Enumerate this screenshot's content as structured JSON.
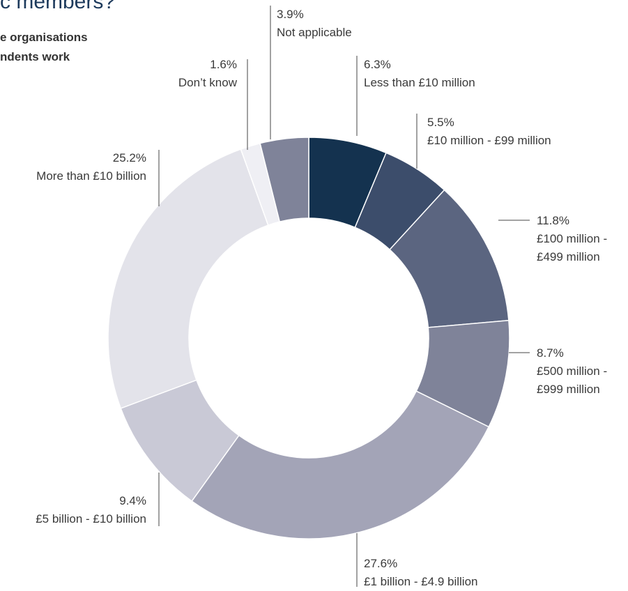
{
  "chart_data": {
    "type": "donut",
    "title": "c members?",
    "subtitle_lines": [
      "e organisations",
      "ndents work"
    ],
    "categories": [
      "Less than £10 million",
      "£10 million - £99 million",
      "£100 million - £499 million",
      "£500 million - £999 million",
      "£1 billion - £4.9 billion",
      "£5 billion - £10 billion",
      "More than £10 billion",
      "Don’t know",
      "Not applicable"
    ],
    "values": [
      6.3,
      5.5,
      11.8,
      8.7,
      27.6,
      9.4,
      25.2,
      1.6,
      3.9
    ],
    "value_labels": [
      "6.3%",
      "5.5%",
      "11.8%",
      "8.7%",
      "27.6%",
      "9.4%",
      "25.2%",
      "1.6%",
      "3.9%"
    ],
    "colors": [
      "#14324f",
      "#3c4d6b",
      "#5b6580",
      "#7f8399",
      "#a3a4b7",
      "#c9c9d6",
      "#e3e3ea",
      "#efeff4",
      "#7f8399"
    ]
  }
}
